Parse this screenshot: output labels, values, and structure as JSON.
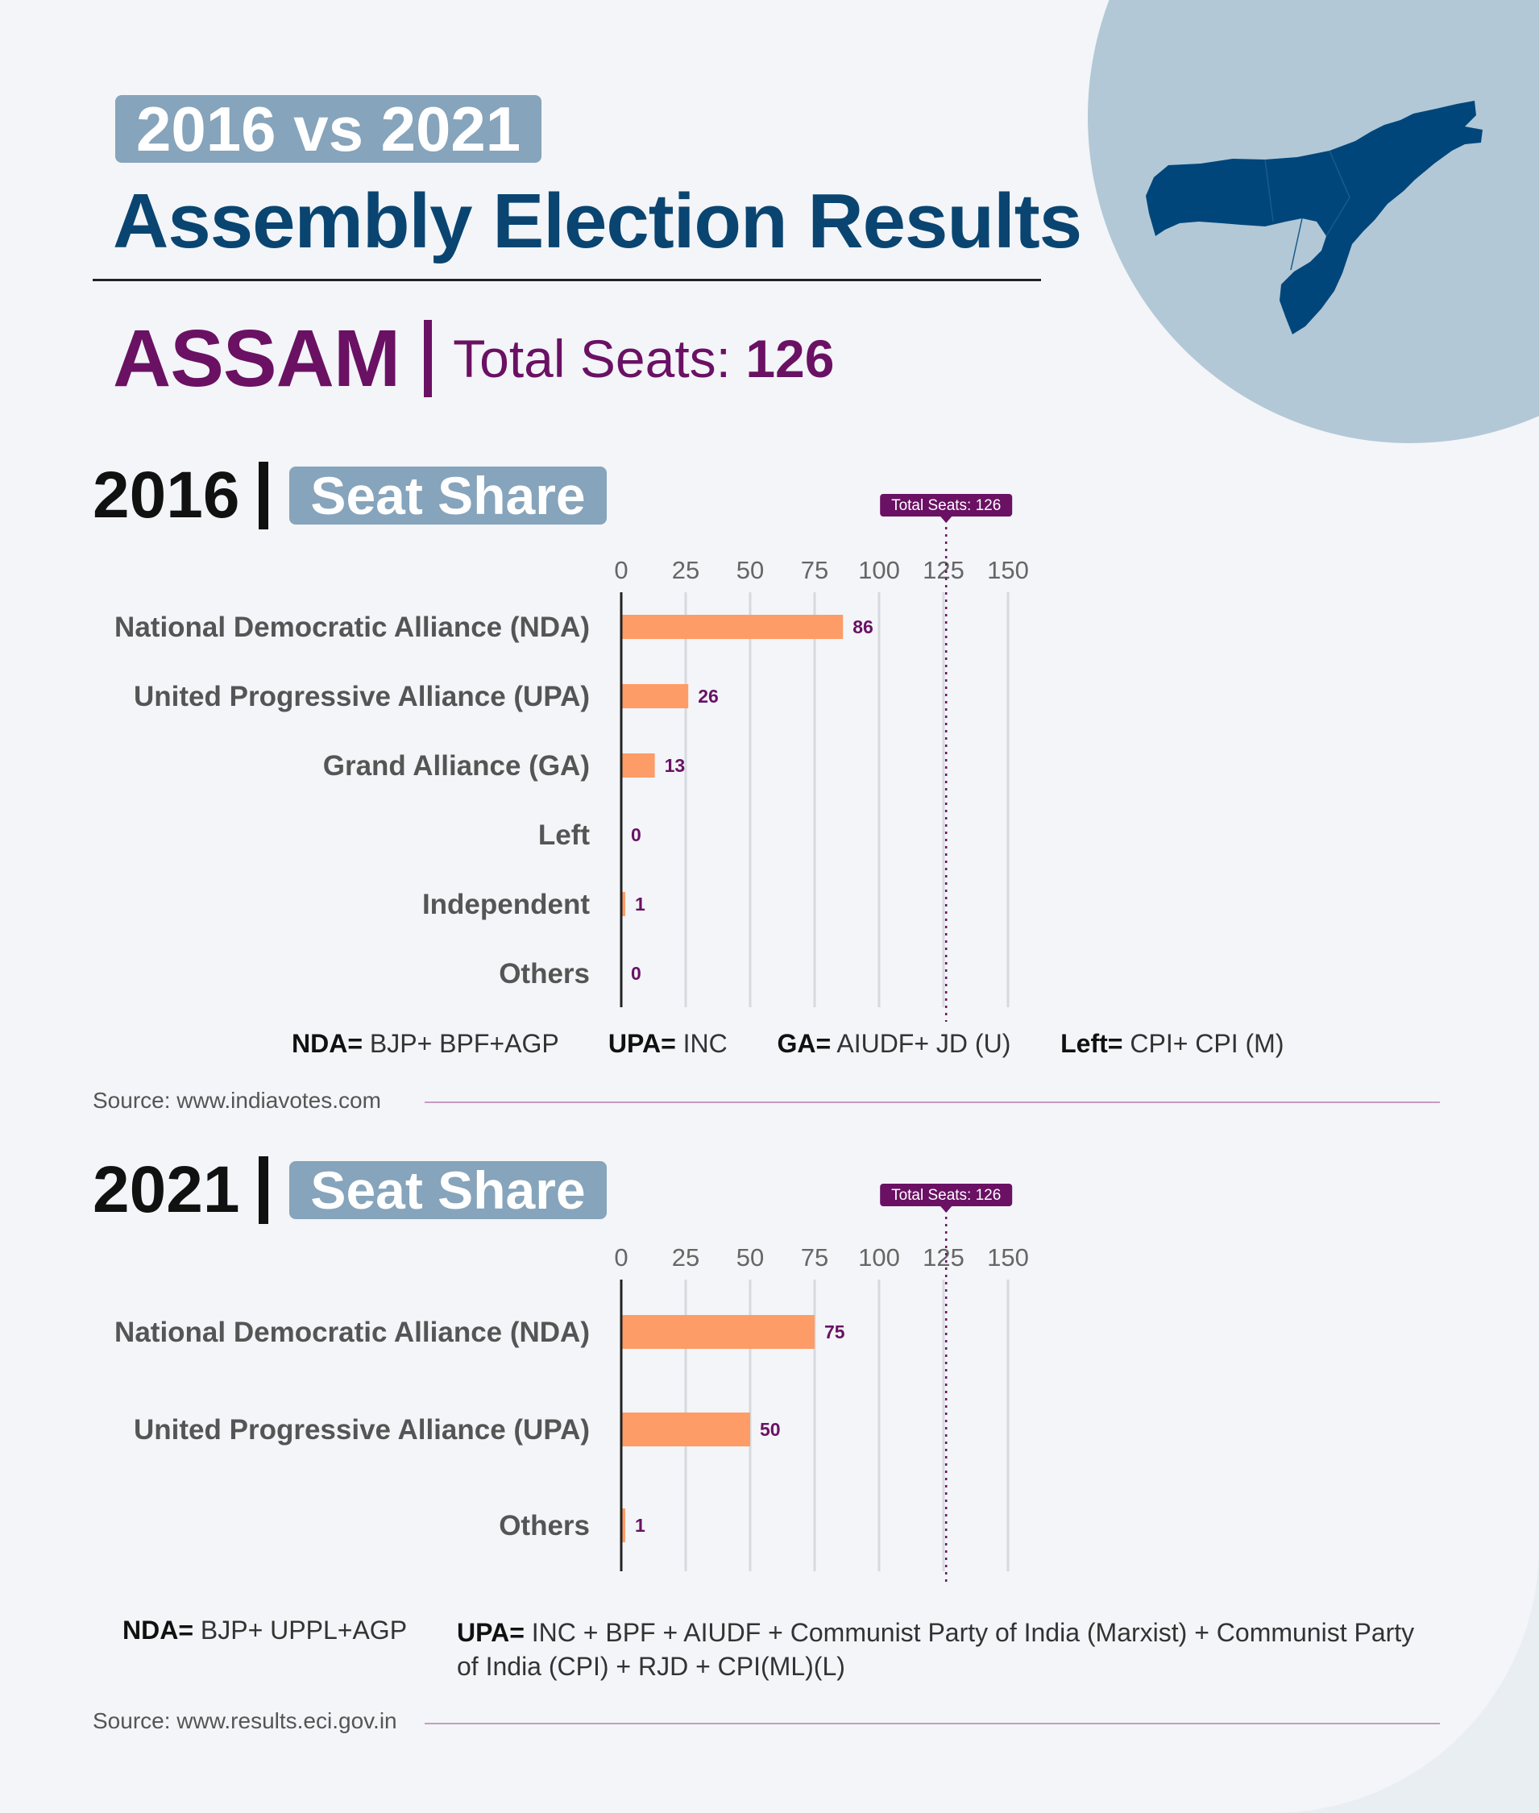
{
  "header": {
    "badge": "2016 vs 2021",
    "title": "Assembly Election Results",
    "state": "ASSAM",
    "total_label": "Total Seats:",
    "total_value": "126"
  },
  "colors": {
    "bar": "#fd9c66",
    "purple": "#6a1164",
    "navy": "#0a4571",
    "badge": "#86a4bb",
    "grid": "#d6d9de"
  },
  "icons": {
    "map": "assam-map-icon"
  },
  "section_2016": {
    "year": "2016",
    "badge": "Seat Share",
    "legend": [
      {
        "key": "NDA=",
        "value": "BJP+ BPF+AGP"
      },
      {
        "key": "UPA=",
        "value": "INC"
      },
      {
        "key": "GA=",
        "value": "AIUDF+ JD (U)"
      },
      {
        "key": "Left=",
        "value": "CPI+ CPI (M)"
      }
    ],
    "source": "Source: www.indiavotes.com"
  },
  "section_2021": {
    "year": "2021",
    "badge": "Seat Share",
    "legend": [
      {
        "key": "NDA=",
        "value": "BJP+ UPPL+AGP"
      },
      {
        "key": "UPA=",
        "value": "INC + BPF + AIUDF + Communist Party of India (Marxist) + Communist Party of India (CPI) + RJD + CPI(ML)(L)"
      }
    ],
    "source": "Source: www.results.eci.gov.in"
  },
  "chart_data": [
    {
      "type": "bar",
      "orientation": "horizontal",
      "title": "2016 | Seat Share",
      "categories": [
        "National Democratic Alliance (NDA)",
        "United Progressive Alliance (UPA)",
        "Grand Alliance (GA)",
        "Left",
        "Independent",
        "Others"
      ],
      "values": [
        86,
        26,
        13,
        0,
        1,
        0
      ],
      "xlim": [
        0,
        150
      ],
      "xticks": [
        0,
        25,
        50,
        75,
        100,
        125,
        150
      ],
      "reference_line": {
        "value": 126,
        "label": "Total Seats: 126"
      },
      "grid": true
    },
    {
      "type": "bar",
      "orientation": "horizontal",
      "title": "2021 | Seat Share",
      "categories": [
        "National Democratic Alliance (NDA)",
        "United Progressive Alliance (UPA)",
        "Others"
      ],
      "values": [
        75,
        50,
        1
      ],
      "xlim": [
        0,
        150
      ],
      "xticks": [
        0,
        25,
        50,
        75,
        100,
        125,
        150
      ],
      "reference_line": {
        "value": 126,
        "label": "Total Seats: 126"
      },
      "grid": true
    }
  ]
}
